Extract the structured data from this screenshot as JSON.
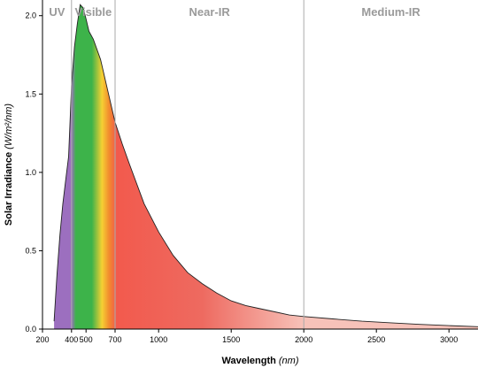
{
  "chart_data": {
    "type": "area",
    "xlabel": "Wavelength",
    "xlabel_unit": "(nm)",
    "ylabel": "Solar Irradiance",
    "ylabel_unit": "(W/m²/nm)",
    "xlim": [
      200,
      3200
    ],
    "ylim": [
      0,
      2.1
    ],
    "x_ticks": [
      200,
      400,
      500,
      700,
      1000,
      1500,
      2000,
      2500,
      3000
    ],
    "y_ticks": [
      0.0,
      0.5,
      1.0,
      1.5,
      2.0
    ],
    "y_tick_labels": [
      "0.0",
      "0.5",
      "1.0",
      "1.5",
      "2.0"
    ],
    "regions": [
      {
        "label": "UV",
        "start": 200,
        "end": 400
      },
      {
        "label": "Visible",
        "start": 400,
        "end": 700
      },
      {
        "label": "Near-IR",
        "start": 700,
        "end": 2000
      },
      {
        "label": "Medium-IR",
        "start": 2000,
        "end": 3200
      }
    ],
    "boundaries": [
      400,
      700,
      2000
    ],
    "series": [
      {
        "x": [
          280,
          300,
          320,
          340,
          360,
          380,
          400,
          420,
          440,
          460,
          480,
          500,
          520,
          550,
          600,
          650,
          700,
          750,
          800,
          900,
          1000,
          1100,
          1200,
          1300,
          1400,
          1500,
          1600,
          1700,
          1800,
          1900,
          2000,
          2200,
          2400,
          2600,
          2800,
          3000,
          3200
        ],
        "y": [
          0.05,
          0.35,
          0.6,
          0.8,
          0.95,
          1.1,
          1.55,
          1.8,
          1.95,
          2.07,
          2.05,
          1.98,
          1.9,
          1.85,
          1.72,
          1.52,
          1.32,
          1.18,
          1.05,
          0.8,
          0.62,
          0.47,
          0.36,
          0.29,
          0.23,
          0.18,
          0.15,
          0.13,
          0.11,
          0.09,
          0.08,
          0.065,
          0.05,
          0.04,
          0.03,
          0.022,
          0.015
        ]
      }
    ],
    "colors": {
      "uv": "#9c6fbf",
      "green": "#3db34a",
      "yellow": "#f5d033",
      "orange": "#f28a2e",
      "red": "#f25a4d",
      "deep_red": "#ee6a60",
      "pale_pink": "#f7c2b9",
      "curve": "#222222",
      "grid_line": "#aaaaaa",
      "region_label": "#9a9a9a"
    }
  }
}
